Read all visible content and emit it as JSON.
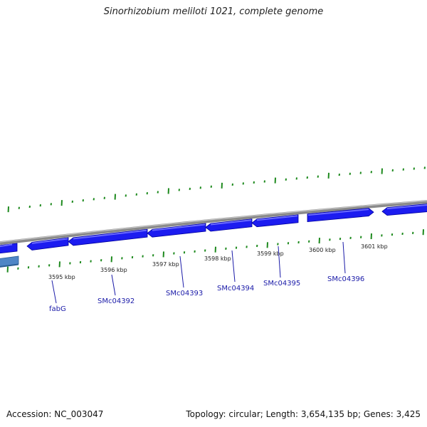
{
  "title": "Sinorhizobium meliloti 1021, complete genome",
  "footer": {
    "accession": "Accession: NC_003047",
    "summary": "Topology: circular; Length: 3,654,135 bp; Genes: 3,425"
  },
  "colors": {
    "backbone": "#8a8a8a",
    "gene_fill": "#1c1cf0",
    "gene_top": "#6a6aff",
    "gene_dark": "#0000a0",
    "selected_gene": "#4f86c6",
    "tick": "#1e8a1e",
    "gene_label": "#1a1aa8"
  },
  "tick_labels": [
    "3595 kbp",
    "3596 kbp",
    "3597 kbp",
    "3598 kbp",
    "3599 kbp",
    "3600 kbp",
    "3601 kbp"
  ],
  "gene_labels": [
    "fabG",
    "SMc04392",
    "SMc04393",
    "SMc04394",
    "SMc04395",
    "SMc04396"
  ]
}
